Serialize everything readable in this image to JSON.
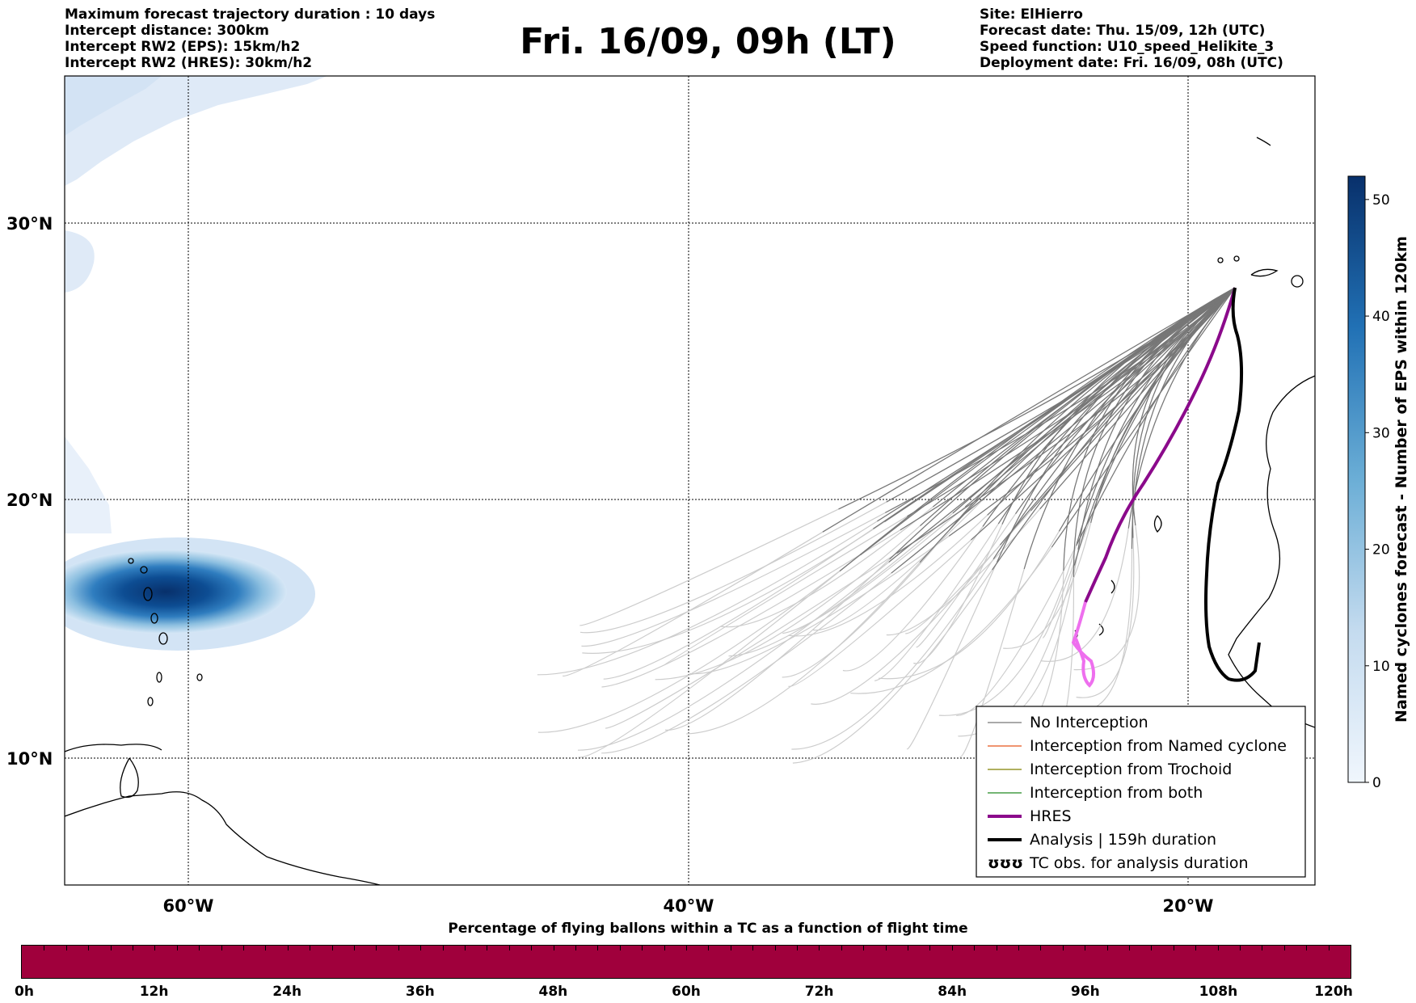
{
  "header": {
    "left_lines": [
      "Maximum forecast trajectory duration : 10 days",
      "Intercept distance: 300km",
      "Intercept RW2 (EPS):  15km/h2",
      "Intercept RW2 (HRES): 30km/h2"
    ],
    "title": "Fri. 16/09, 09h (LT)",
    "right_lines": [
      "Site: ElHierro",
      "Forecast date: Thu. 15/09, 12h (UTC)",
      "Speed function: U10_speed_Helikite_3",
      "Deployment date: Fri. 16/09, 08h (UTC)"
    ]
  },
  "map": {
    "lat_labels": [
      {
        "lat": 30,
        "label": "30°N"
      },
      {
        "lat": 20,
        "label": "20°N"
      },
      {
        "lat": 10,
        "label": "10°N"
      }
    ],
    "lon_labels": [
      {
        "lon": -60,
        "label": "60°W"
      },
      {
        "lon": -40,
        "label": "40°W"
      },
      {
        "lon": -20,
        "label": "20°W"
      }
    ],
    "colors": {
      "no_interception": "#777777",
      "named_cyclone": "#e8561c",
      "trochoid": "#808000",
      "both": "#228b22",
      "hres": "#8b0a8b",
      "hres_light": "#ee6fee",
      "analysis": "#000000",
      "ensemble_light": "#cccccc"
    }
  },
  "legend": {
    "items": [
      {
        "label": "No Interception",
        "kind": "line",
        "color": "#777777",
        "width": 1.2
      },
      {
        "label": "Interception from Named cyclone",
        "kind": "line",
        "color": "#e8561c",
        "width": 1.2
      },
      {
        "label": "Interception from Trochoid",
        "kind": "line",
        "color": "#808000",
        "width": 1.2
      },
      {
        "label": "Interception from both",
        "kind": "line",
        "color": "#228b22",
        "width": 1.2
      },
      {
        "label": "HRES",
        "kind": "line",
        "color": "#8b0a8b",
        "width": 4
      },
      {
        "label": "Analysis | 159h duration",
        "kind": "line",
        "color": "#000000",
        "width": 4
      },
      {
        "label": "TC obs. for analysis duration",
        "kind": "symbol",
        "symbol": "ʊʊʊ"
      }
    ]
  },
  "colorbar": {
    "label": "Named cyclones forecast - Number of EPS within 120km",
    "ticks": [
      0,
      10,
      20,
      30,
      40,
      50
    ],
    "max": 52,
    "color_low": "#e4eef9",
    "color_high": "#08306b"
  },
  "bottom": {
    "title": "Percentage of flying ballons within a TC as a function of flight time",
    "bar_color": "#a0003c",
    "tick_labels": [
      "0h",
      "12h",
      "24h",
      "36h",
      "48h",
      "60h",
      "72h",
      "84h",
      "96h",
      "108h",
      "120h"
    ]
  }
}
